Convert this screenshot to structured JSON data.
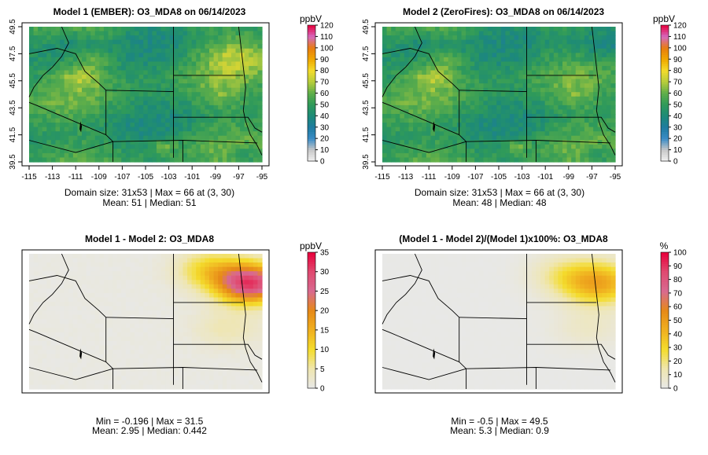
{
  "panels": [
    {
      "title": "Model 1 (EMBER): O3_MDA8 on 06/14/2023",
      "caption_line1": "Domain size: 31x53 | Max = 66 at (3, 30)",
      "caption_line2": "Mean: 51 |  Median: 51"
    },
    {
      "title": "Model 2 (ZeroFires): O3_MDA8 on 06/14/2023",
      "caption_line1": "Domain size: 31x53 | Max = 66 at (3, 30)",
      "caption_line2": "Mean: 48 |  Median: 48"
    },
    {
      "title": "Model 1 - Model 2: O3_MDA8",
      "caption_line1": "Min = -0.196 | Max = 31.5",
      "caption_line2": "Mean: 2.95 |  Median: 0.442"
    },
    {
      "title": "(Model 1 - Model 2)/(Model 1)x100%: O3_MDA8",
      "caption_line1": "Min = -0.5 | Max = 49.5",
      "caption_line2": "Mean: 5.3 |  Median: 0.9"
    }
  ],
  "chart_data": [
    {
      "type": "heatmap",
      "title": "Model 1 (EMBER): O3_MDA8 on 06/14/2023",
      "x_ticks": [
        "-115",
        "-113",
        "-111",
        "-109",
        "-107",
        "-105",
        "-103",
        "-101",
        "-99",
        "-97",
        "-95"
      ],
      "y_ticks": [
        "39.5",
        "41.5",
        "43.5",
        "45.5",
        "47.5",
        "49.5"
      ],
      "xlim": [
        -115,
        -95
      ],
      "ylim": [
        39.5,
        49.5
      ],
      "legend_unit": "ppbV",
      "legend_ticks": [
        "0",
        "10",
        "20",
        "30",
        "40",
        "50",
        "60",
        "70",
        "80",
        "90",
        "100",
        "110",
        "120"
      ],
      "value_range": [
        0,
        120
      ],
      "grid_size": "31x53",
      "max": 66,
      "mean": 51,
      "median": 51
    },
    {
      "type": "heatmap",
      "title": "Model 2 (ZeroFires): O3_MDA8 on 06/14/2023",
      "x_ticks": [
        "-115",
        "-113",
        "-111",
        "-109",
        "-107",
        "-105",
        "-103",
        "-101",
        "-99",
        "-97",
        "-95"
      ],
      "y_ticks": [
        "39.5",
        "41.5",
        "43.5",
        "45.5",
        "47.5",
        "49.5"
      ],
      "xlim": [
        -115,
        -95
      ],
      "ylim": [
        39.5,
        49.5
      ],
      "legend_unit": "ppbV",
      "legend_ticks": [
        "0",
        "10",
        "20",
        "30",
        "40",
        "50",
        "60",
        "70",
        "80",
        "90",
        "100",
        "110",
        "120"
      ],
      "value_range": [
        0,
        120
      ],
      "grid_size": "31x53",
      "max": 66,
      "mean": 48,
      "median": 48
    },
    {
      "type": "heatmap",
      "title": "Model 1 - Model 2: O3_MDA8",
      "legend_unit": "ppbV",
      "legend_ticks": [
        "0",
        "5",
        "10",
        "15",
        "20",
        "25",
        "30",
        "35"
      ],
      "value_range": [
        0,
        35
      ],
      "min": -0.196,
      "max": 31.5,
      "mean": 2.95,
      "median": 0.442
    },
    {
      "type": "heatmap",
      "title": "(Model 1 - Model 2)/(Model 1)x100%: O3_MDA8",
      "legend_unit": "%",
      "legend_ticks": [
        "0",
        "10",
        "20",
        "30",
        "40",
        "50",
        "60",
        "70",
        "80",
        "90",
        "100"
      ],
      "value_range": [
        0,
        100
      ],
      "min": -0.5,
      "max": 49.5,
      "mean": 5.3,
      "median": 0.9
    }
  ],
  "colors": {
    "abs_scale": [
      "#f2f2f2",
      "#c8c8c8",
      "#3a8cc6",
      "#1e7ba0",
      "#1d8a78",
      "#2f9a5a",
      "#5fae4a",
      "#b6cc3c",
      "#f4dc2c",
      "#f0a800",
      "#e87d10",
      "#d56ac0",
      "#e8003c"
    ],
    "diff_scale": [
      "#e8e8e8",
      "#efe6b0",
      "#f4dc2c",
      "#f0b020",
      "#e68a18",
      "#d86a90",
      "#e04a70",
      "#e8003c"
    ],
    "border": "#000000"
  }
}
